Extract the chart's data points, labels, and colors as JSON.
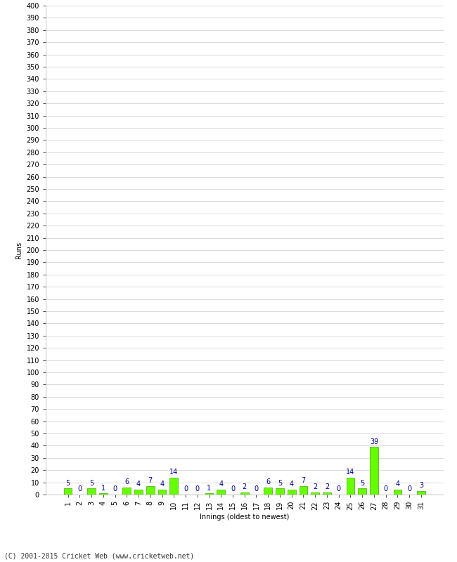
{
  "xlabel": "Innings (oldest to newest)",
  "ylabel": "Runs",
  "values": [
    5,
    0,
    5,
    1,
    0,
    6,
    4,
    7,
    4,
    14,
    0,
    0,
    1,
    4,
    0,
    2,
    0,
    6,
    5,
    4,
    7,
    2,
    2,
    0,
    14,
    5,
    39,
    0,
    4,
    0,
    3
  ],
  "categories": [
    "1",
    "2",
    "3",
    "4",
    "5",
    "6",
    "7",
    "8",
    "9",
    "10",
    "11",
    "12",
    "13",
    "14",
    "15",
    "16",
    "17",
    "18",
    "19",
    "20",
    "21",
    "22",
    "23",
    "24",
    "25",
    "26",
    "27",
    "28",
    "29",
    "30",
    "31"
  ],
  "bar_color": "#66ff00",
  "bar_edge_color": "#44aa00",
  "label_color": "#000099",
  "ylim": [
    0,
    400
  ],
  "background_color": "#ffffff",
  "grid_color": "#cccccc",
  "footer": "(C) 2001-2015 Cricket Web (www.cricketweb.net)",
  "label_fontsize": 7,
  "axis_fontsize": 7,
  "ylabel_fontsize": 7,
  "xlabel_fontsize": 7
}
